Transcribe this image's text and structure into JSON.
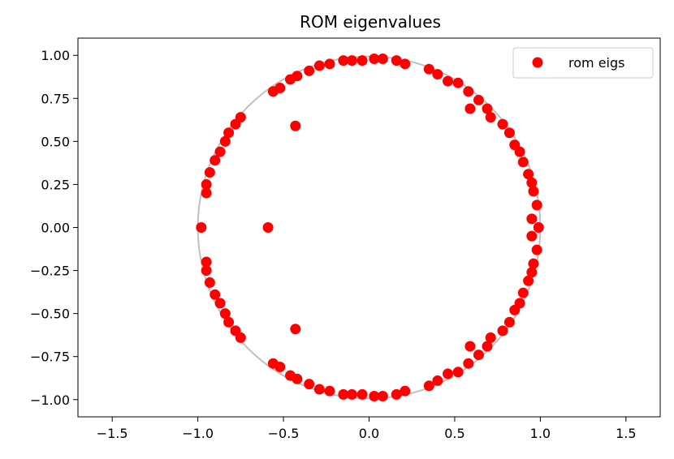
{
  "chart_data": {
    "type": "scatter",
    "title": "ROM eigenvalues",
    "xlabel": "",
    "ylabel": "",
    "xlim": [
      -1.7,
      1.7
    ],
    "ylim": [
      -1.1,
      1.1
    ],
    "xticks": [
      -1.5,
      -1.0,
      -0.5,
      0.0,
      0.5,
      1.0,
      1.5
    ],
    "xtick_labels": [
      "−1.5",
      "−1.0",
      "−0.5",
      "0.0",
      "0.5",
      "1.0",
      "1.5"
    ],
    "yticks": [
      1.0,
      0.75,
      0.5,
      0.25,
      0.0,
      -0.25,
      -0.5,
      -0.75,
      -1.0
    ],
    "ytick_labels": [
      "1.00",
      "0.75",
      "0.50",
      "0.25",
      "0.00",
      "−0.25",
      "−0.50",
      "−0.75",
      "−1.00"
    ],
    "grid": false,
    "legend_position": "top-right",
    "unit_circle": {
      "radius": 1,
      "color": "#c0c0c0"
    },
    "series": [
      {
        "name": "rom eigs",
        "color": "#ff0000",
        "points": [
          [
            -0.98,
            0.0
          ],
          [
            -0.59,
            0.0
          ],
          [
            -0.43,
            0.59
          ],
          [
            -0.95,
            0.2
          ],
          [
            -0.95,
            0.25
          ],
          [
            -0.93,
            0.32
          ],
          [
            -0.9,
            0.39
          ],
          [
            -0.87,
            0.44
          ],
          [
            -0.84,
            0.5
          ],
          [
            -0.82,
            0.55
          ],
          [
            -0.78,
            0.6
          ],
          [
            -0.75,
            0.64
          ],
          [
            -0.56,
            0.79
          ],
          [
            -0.52,
            0.81
          ],
          [
            -0.46,
            0.86
          ],
          [
            -0.42,
            0.88
          ],
          [
            -0.35,
            0.91
          ],
          [
            -0.29,
            0.94
          ],
          [
            -0.23,
            0.95
          ],
          [
            -0.15,
            0.97
          ],
          [
            -0.1,
            0.97
          ],
          [
            -0.04,
            0.97
          ],
          [
            0.03,
            0.98
          ],
          [
            0.08,
            0.98
          ],
          [
            0.16,
            0.97
          ],
          [
            0.21,
            0.95
          ],
          [
            0.35,
            0.92
          ],
          [
            0.4,
            0.89
          ],
          [
            0.46,
            0.85
          ],
          [
            0.52,
            0.84
          ],
          [
            0.58,
            0.79
          ],
          [
            0.59,
            0.69
          ],
          [
            0.64,
            0.74
          ],
          [
            0.69,
            0.69
          ],
          [
            0.71,
            0.64
          ],
          [
            0.78,
            0.6
          ],
          [
            0.82,
            0.55
          ],
          [
            0.85,
            0.48
          ],
          [
            0.88,
            0.44
          ],
          [
            0.9,
            0.38
          ],
          [
            0.93,
            0.31
          ],
          [
            0.95,
            0.26
          ],
          [
            0.96,
            0.21
          ],
          [
            0.98,
            0.13
          ],
          [
            0.95,
            0.05
          ],
          [
            0.95,
            -0.05
          ],
          [
            0.99,
            0.0
          ],
          [
            -0.43,
            -0.59
          ],
          [
            -0.95,
            -0.2
          ],
          [
            -0.95,
            -0.25
          ],
          [
            -0.93,
            -0.32
          ],
          [
            -0.9,
            -0.39
          ],
          [
            -0.87,
            -0.44
          ],
          [
            -0.84,
            -0.5
          ],
          [
            -0.82,
            -0.55
          ],
          [
            -0.78,
            -0.6
          ],
          [
            -0.75,
            -0.64
          ],
          [
            -0.56,
            -0.79
          ],
          [
            -0.52,
            -0.81
          ],
          [
            -0.46,
            -0.86
          ],
          [
            -0.42,
            -0.88
          ],
          [
            -0.35,
            -0.91
          ],
          [
            -0.29,
            -0.94
          ],
          [
            -0.23,
            -0.95
          ],
          [
            -0.15,
            -0.97
          ],
          [
            -0.1,
            -0.97
          ],
          [
            -0.04,
            -0.97
          ],
          [
            0.03,
            -0.98
          ],
          [
            0.08,
            -0.98
          ],
          [
            0.16,
            -0.97
          ],
          [
            0.21,
            -0.95
          ],
          [
            0.35,
            -0.92
          ],
          [
            0.4,
            -0.89
          ],
          [
            0.46,
            -0.85
          ],
          [
            0.52,
            -0.84
          ],
          [
            0.58,
            -0.79
          ],
          [
            0.59,
            -0.69
          ],
          [
            0.64,
            -0.74
          ],
          [
            0.69,
            -0.69
          ],
          [
            0.71,
            -0.64
          ],
          [
            0.78,
            -0.6
          ],
          [
            0.82,
            -0.55
          ],
          [
            0.85,
            -0.48
          ],
          [
            0.88,
            -0.44
          ],
          [
            0.9,
            -0.38
          ],
          [
            0.93,
            -0.31
          ],
          [
            0.95,
            -0.26
          ],
          [
            0.96,
            -0.21
          ],
          [
            0.98,
            -0.13
          ]
        ]
      }
    ]
  }
}
